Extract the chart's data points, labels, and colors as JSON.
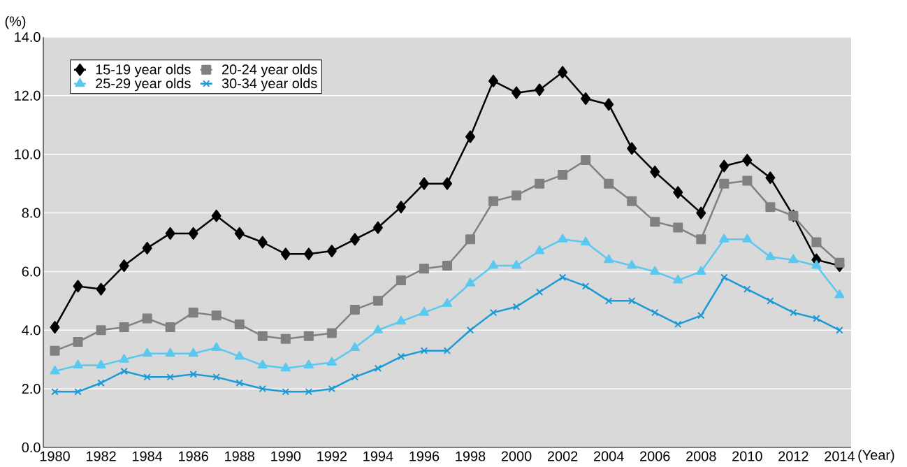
{
  "chart_data": {
    "type": "line",
    "xlabel": "(Year)",
    "ylabel": "(%)",
    "x": [
      1980,
      1981,
      1982,
      1983,
      1984,
      1985,
      1986,
      1987,
      1988,
      1989,
      1990,
      1991,
      1992,
      1993,
      1994,
      1995,
      1996,
      1997,
      1998,
      1999,
      2000,
      2001,
      2002,
      2003,
      2004,
      2005,
      2006,
      2007,
      2008,
      2009,
      2010,
      2011,
      2012,
      2013,
      2014
    ],
    "series": [
      {
        "name": "15-19 year olds",
        "color": "#000000",
        "marker": "diamond",
        "values": [
          4.1,
          5.5,
          5.4,
          6.2,
          6.8,
          7.3,
          7.3,
          7.9,
          7.3,
          7.0,
          6.6,
          6.6,
          6.7,
          7.1,
          7.5,
          8.2,
          9.0,
          9.0,
          10.6,
          12.5,
          12.1,
          12.2,
          12.8,
          11.9,
          11.7,
          10.2,
          9.4,
          8.7,
          8.0,
          9.6,
          9.8,
          9.2,
          7.9,
          6.4,
          6.2
        ]
      },
      {
        "name": "20-24 year olds",
        "color": "#808080",
        "marker": "square",
        "values": [
          3.3,
          3.6,
          4.0,
          4.1,
          4.4,
          4.1,
          4.6,
          4.5,
          4.2,
          3.8,
          3.7,
          3.8,
          3.9,
          4.7,
          5.0,
          5.7,
          6.1,
          6.2,
          7.1,
          8.4,
          8.6,
          9.0,
          9.3,
          9.8,
          9.0,
          8.4,
          7.7,
          7.5,
          7.1,
          9.0,
          9.1,
          8.2,
          7.9,
          7.0,
          6.3
        ]
      },
      {
        "name": "25-29 year olds",
        "color": "#5bc8f0",
        "marker": "triangle",
        "values": [
          2.6,
          2.8,
          2.8,
          3.0,
          3.2,
          3.2,
          3.2,
          3.4,
          3.1,
          2.8,
          2.7,
          2.8,
          2.9,
          3.4,
          4.0,
          4.3,
          4.6,
          4.9,
          5.6,
          6.2,
          6.2,
          6.7,
          7.1,
          7.0,
          6.4,
          6.2,
          6.0,
          5.7,
          6.0,
          7.1,
          7.1,
          6.5,
          6.4,
          6.2,
          5.2
        ]
      },
      {
        "name": "30-34 year olds",
        "color": "#1a9ad6",
        "marker": "cross",
        "values": [
          1.9,
          1.9,
          2.2,
          2.6,
          2.4,
          2.4,
          2.5,
          2.4,
          2.2,
          2.0,
          1.9,
          1.9,
          2.0,
          2.4,
          2.7,
          3.1,
          3.3,
          3.3,
          4.0,
          4.6,
          4.8,
          5.3,
          5.8,
          5.5,
          5.0,
          5.0,
          4.6,
          4.2,
          4.5,
          5.8,
          5.4,
          5.0,
          4.6,
          4.4,
          4.0
        ]
      }
    ],
    "xlim": [
      1979.5,
      2014.5
    ],
    "xticks": [
      1980,
      1982,
      1984,
      1986,
      1988,
      1990,
      1992,
      1994,
      1996,
      1998,
      2000,
      2002,
      2004,
      2006,
      2008,
      2010,
      2012,
      2014
    ],
    "ylim": [
      0,
      14
    ],
    "yticks": [
      {
        "value": 0,
        "label": "0.0"
      },
      {
        "value": 2,
        "label": "2.0"
      },
      {
        "value": 4,
        "label": "4.0"
      },
      {
        "value": 6,
        "label": "6.0"
      },
      {
        "value": 8,
        "label": "8.0"
      },
      {
        "value": 10,
        "label": "10.0"
      },
      {
        "value": 12,
        "label": "12.0"
      },
      {
        "value": 14,
        "label": "14.0"
      }
    ],
    "grid": "y",
    "legend": "top left"
  }
}
